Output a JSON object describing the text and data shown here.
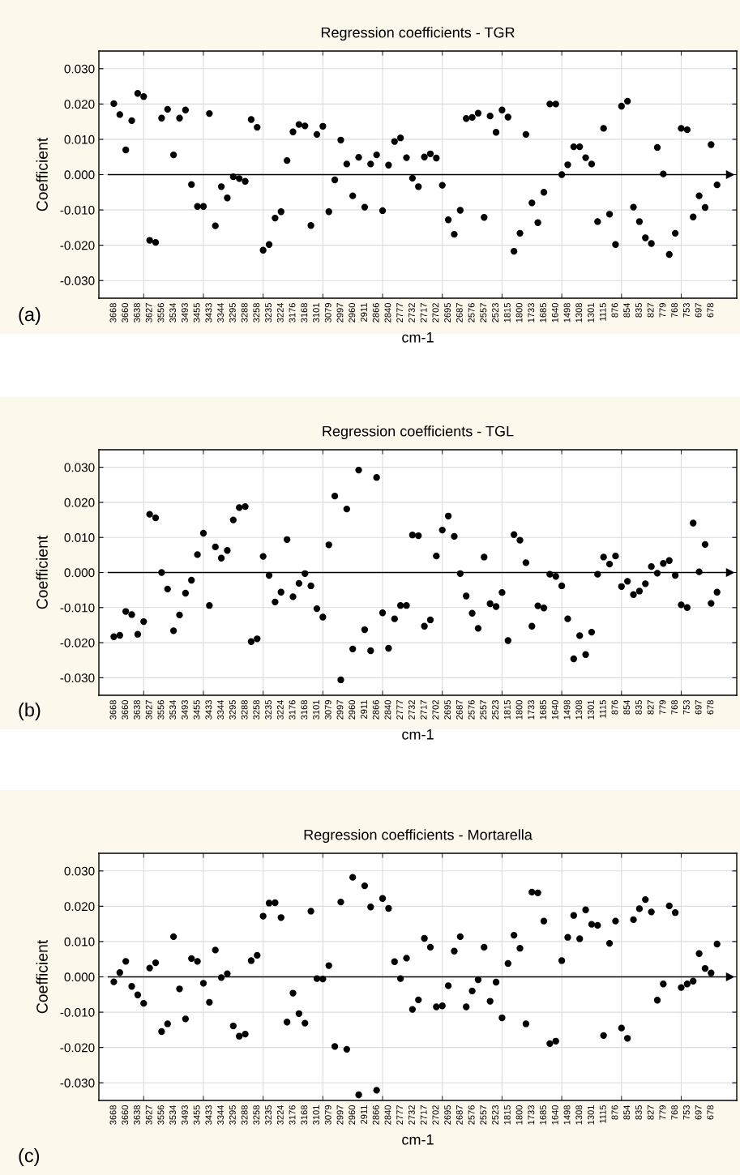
{
  "chart_data": [
    {
      "type": "scatter",
      "title": "Regression coefficients - TGR",
      "xlabel": "cm-1",
      "ylabel": "Coefficient",
      "annotations": [
        "(a)"
      ],
      "categories": [
        "3668",
        null,
        "3660",
        null,
        "3638",
        null,
        "3627",
        null,
        "3556",
        null,
        "3534",
        null,
        "3493",
        null,
        "3455",
        null,
        "3433",
        null,
        "3344",
        null,
        "3295",
        null,
        "3288",
        null,
        "3258",
        null,
        "3235",
        null,
        "3224",
        null,
        "3176",
        null,
        "3168",
        null,
        "3101",
        null,
        "3079",
        null,
        "2997",
        null,
        "2960",
        null,
        "2911",
        null,
        "2866",
        null,
        "2840",
        null,
        "2777",
        null,
        "2732",
        null,
        "2717",
        null,
        "2702",
        null,
        "2695",
        null,
        "2687",
        null,
        "2576",
        null,
        "2557",
        null,
        "2523",
        null,
        "1815",
        null,
        "1800",
        null,
        "1733",
        null,
        "1685",
        null,
        "1640",
        null,
        "1498",
        null,
        "1308",
        null,
        "1301",
        null,
        "1115",
        null,
        "876",
        null,
        "854",
        null,
        "835",
        null,
        "827",
        null,
        "779",
        null,
        "768",
        null,
        "753",
        null,
        "697",
        null,
        "678",
        null
      ],
      "series": [
        {
          "color": "#000000",
          "values": [
            0.0201,
            0.017,
            0.007,
            0.0153,
            0.023,
            0.0221,
            -0.0186,
            -0.0192,
            0.016,
            0.0185,
            0.0056,
            0.016,
            0.0183,
            -0.0028,
            -0.009,
            -0.009,
            0.0173,
            -0.0145,
            -0.0034,
            -0.0066,
            -0.0006,
            -0.0011,
            -0.0019,
            0.0156,
            0.0134,
            -0.0214,
            -0.0198,
            -0.0123,
            -0.0105,
            0.004,
            0.0121,
            0.0142,
            0.0138,
            -0.0144,
            0.0114,
            0.0137,
            -0.0105,
            -0.0015,
            0.0098,
            0.003,
            -0.006,
            0.0049,
            -0.0092,
            0.003,
            0.0056,
            -0.0102,
            0.0027,
            0.0094,
            0.0104,
            0.0048,
            -0.001,
            -0.0034,
            0.005,
            0.0059,
            0.0047,
            -0.003,
            -0.0128,
            -0.0169,
            -0.0101,
            0.0159,
            0.0162,
            0.0174,
            -0.0121,
            0.0166,
            0.012,
            0.0183,
            0.0163,
            -0.0217,
            -0.0166,
            0.0114,
            -0.008,
            -0.0136,
            -0.005,
            0.02,
            0.02,
            0.0,
            0.0028,
            0.0079,
            0.0079,
            0.0048,
            0.003,
            -0.0133,
            0.0131,
            -0.0112,
            -0.0198,
            0.0194,
            0.0208,
            -0.0092,
            -0.0133,
            -0.0179,
            -0.0195,
            0.0077,
            0.0002,
            -0.0226,
            -0.0166,
            0.0131,
            0.0127,
            -0.012,
            -0.006,
            -0.0093,
            0.0085,
            -0.0029
          ]
        }
      ],
      "ylim": [
        -0.035,
        0.035
      ],
      "yticks": [
        {
          "value": -0.03,
          "label": "-0.030"
        },
        {
          "value": -0.02,
          "label": "-0.020"
        },
        {
          "value": -0.01,
          "label": "-0.010"
        },
        {
          "value": 0,
          "label": "0.000"
        },
        {
          "value": 0.01,
          "label": "0.010"
        },
        {
          "value": 0.02,
          "label": "0.020"
        },
        {
          "value": 0.03,
          "label": "0.030"
        }
      ],
      "ref_lines": [
        {
          "axis": "y",
          "value": 0,
          "color": "#000000"
        }
      ],
      "grid": true,
      "marker": "circle",
      "legend": false
    },
    {
      "type": "scatter",
      "title": "Regression coefficients - TGL",
      "xlabel": "cm-1",
      "ylabel": "Coefficient",
      "annotations": [
        "(b)"
      ],
      "categories": [
        "3668",
        null,
        "3660",
        null,
        "3638",
        null,
        "3627",
        null,
        "3556",
        null,
        "3534",
        null,
        "3493",
        null,
        "3455",
        null,
        "3433",
        null,
        "3344",
        null,
        "3295",
        null,
        "3288",
        null,
        "3258",
        null,
        "3235",
        null,
        "3224",
        null,
        "3176",
        null,
        "3168",
        null,
        "3101",
        null,
        "3079",
        null,
        "2997",
        null,
        "2960",
        null,
        "2911",
        null,
        "2866",
        null,
        "2840",
        null,
        "2777",
        null,
        "2732",
        null,
        "2717",
        null,
        "2702",
        null,
        "2695",
        null,
        "2687",
        null,
        "2576",
        null,
        "2557",
        null,
        "2523",
        null,
        "1815",
        null,
        "1800",
        null,
        "1733",
        null,
        "1685",
        null,
        "1640",
        null,
        "1498",
        null,
        "1308",
        null,
        "1301",
        null,
        "1115",
        null,
        "876",
        null,
        "854",
        null,
        "835",
        null,
        "827",
        null,
        "779",
        null,
        "768",
        null,
        "753",
        null,
        "697",
        null,
        "678",
        null
      ],
      "series": [
        {
          "color": "#000000",
          "values": [
            -0.0183,
            -0.0179,
            -0.0111,
            -0.012,
            -0.0176,
            -0.014,
            0.0166,
            0.0156,
            0.0,
            -0.0047,
            -0.0166,
            -0.0121,
            -0.0059,
            -0.0022,
            0.0051,
            0.0112,
            -0.0094,
            0.0073,
            0.0041,
            0.0063,
            0.015,
            0.0185,
            0.0188,
            -0.0197,
            -0.0189,
            0.0046,
            -0.0008,
            -0.0084,
            -0.0056,
            0.0094,
            -0.0069,
            -0.0031,
            -0.0003,
            -0.0038,
            -0.0103,
            -0.0127,
            0.0079,
            0.0218,
            -0.0306,
            0.0181,
            -0.0218,
            0.0292,
            -0.0163,
            -0.0223,
            0.0271,
            -0.0115,
            -0.0216,
            -0.0132,
            -0.0094,
            -0.0094,
            0.0107,
            0.0105,
            -0.0153,
            -0.0135,
            0.0047,
            0.0121,
            0.0161,
            0.0103,
            -0.0003,
            -0.0067,
            -0.0116,
            -0.0159,
            0.0044,
            -0.0089,
            -0.0097,
            -0.0057,
            -0.0194,
            0.0108,
            0.0092,
            0.0028,
            -0.0153,
            -0.0095,
            -0.0101,
            -0.0005,
            -0.0011,
            -0.0038,
            -0.0132,
            -0.0246,
            -0.018,
            -0.0234,
            -0.017,
            -0.0005,
            0.0044,
            0.0024,
            0.0047,
            -0.004,
            -0.0025,
            -0.0063,
            -0.0053,
            -0.0032,
            0.0017,
            -0.0002,
            0.0026,
            0.0034,
            -0.0008,
            -0.0092,
            -0.01,
            0.0141,
            0.0002,
            0.008,
            -0.0088,
            -0.0056
          ]
        }
      ],
      "ylim": [
        -0.035,
        0.035
      ],
      "yticks": [
        {
          "value": -0.03,
          "label": "-0.030"
        },
        {
          "value": -0.02,
          "label": "-0.020"
        },
        {
          "value": -0.01,
          "label": "-0.010"
        },
        {
          "value": 0,
          "label": "0.000"
        },
        {
          "value": 0.01,
          "label": "0.010"
        },
        {
          "value": 0.02,
          "label": "0.020"
        },
        {
          "value": 0.03,
          "label": "0.030"
        }
      ],
      "ref_lines": [
        {
          "axis": "y",
          "value": 0,
          "color": "#000000"
        }
      ],
      "grid": true,
      "marker": "circle",
      "legend": false
    },
    {
      "type": "scatter",
      "title": "Regression coefficients - Mortarella",
      "xlabel": "cm-1",
      "ylabel": "Coefficient",
      "annotations": [
        "(c)"
      ],
      "categories": [
        "3668",
        null,
        "3660",
        null,
        "3638",
        null,
        "3627",
        null,
        "3556",
        null,
        "3534",
        null,
        "3493",
        null,
        "3455",
        null,
        "3433",
        null,
        "3344",
        null,
        "3295",
        null,
        "3288",
        null,
        "3258",
        null,
        "3235",
        null,
        "3224",
        null,
        "3176",
        null,
        "3168",
        null,
        "3101",
        null,
        "3079",
        null,
        "2997",
        null,
        "2960",
        null,
        "2911",
        null,
        "2866",
        null,
        "2840",
        null,
        "2777",
        null,
        "2732",
        null,
        "2717",
        null,
        "2702",
        null,
        "2695",
        null,
        "2687",
        null,
        "2576",
        null,
        "2557",
        null,
        "2523",
        null,
        "1815",
        null,
        "1800",
        null,
        "1733",
        null,
        "1685",
        null,
        "1640",
        null,
        "1498",
        null,
        "1308",
        null,
        "1301",
        null,
        "1115",
        null,
        "876",
        null,
        "854",
        null,
        "835",
        null,
        "827",
        null,
        "779",
        null,
        "768",
        null,
        "753",
        null,
        "697",
        null,
        "678",
        null
      ],
      "series": [
        {
          "color": "#000000",
          "values": [
            -0.0014,
            0.0012,
            0.0044,
            -0.0027,
            -0.0051,
            -0.0075,
            0.0025,
            0.004,
            -0.0155,
            -0.0133,
            0.0114,
            -0.0034,
            -0.0119,
            0.0052,
            0.0044,
            -0.0018,
            -0.0072,
            0.0076,
            -0.0002,
            0.0009,
            -0.0139,
            -0.0168,
            -0.0162,
            0.0046,
            0.0061,
            0.0172,
            0.0209,
            0.021,
            0.0168,
            -0.0128,
            -0.0046,
            -0.0104,
            -0.0131,
            0.0186,
            -0.0005,
            -0.0006,
            0.0032,
            -0.0197,
            0.0212,
            -0.0205,
            0.0282,
            -0.0334,
            0.0258,
            0.0198,
            -0.0321,
            0.0222,
            0.0194,
            0.0043,
            -0.0005,
            0.0053,
            -0.0092,
            -0.0065,
            0.0109,
            0.0084,
            -0.0085,
            -0.0082,
            -0.0025,
            0.0073,
            0.0114,
            -0.0085,
            -0.004,
            -0.0008,
            0.0084,
            -0.0069,
            -0.0015,
            -0.0116,
            0.0038,
            0.0118,
            0.0081,
            -0.0133,
            0.024,
            0.0238,
            0.0158,
            -0.0189,
            -0.0182,
            0.0046,
            0.0112,
            0.0174,
            0.0108,
            0.019,
            0.0149,
            0.0146,
            -0.0166,
            0.0095,
            0.0158,
            -0.0145,
            -0.0174,
            0.0162,
            0.0193,
            0.0219,
            0.0184,
            -0.0066,
            -0.002,
            0.0201,
            0.0182,
            -0.003,
            -0.002,
            -0.0012,
            0.0066,
            0.0024,
            0.0011,
            0.0093
          ]
        }
      ],
      "ylim": [
        -0.035,
        0.035
      ],
      "yticks": [
        {
          "value": -0.03,
          "label": "-0.030"
        },
        {
          "value": -0.02,
          "label": "-0.020"
        },
        {
          "value": -0.01,
          "label": "-0.010"
        },
        {
          "value": 0,
          "label": "0.000"
        },
        {
          "value": 0.01,
          "label": "0.010"
        },
        {
          "value": 0.02,
          "label": "0.020"
        },
        {
          "value": 0.03,
          "label": "0.030"
        }
      ],
      "ref_lines": [
        {
          "axis": "y",
          "value": 0,
          "color": "#000000"
        }
      ],
      "grid": true,
      "marker": "circle",
      "legend": false
    }
  ]
}
